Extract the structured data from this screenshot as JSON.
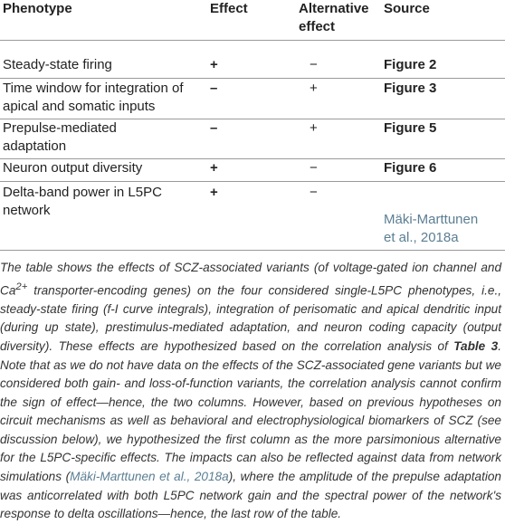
{
  "table": {
    "header": [
      "Phenotype",
      "Effect",
      [
        "Alternative",
        "effect"
      ],
      "Source"
    ],
    "rows": [
      {
        "phenotype": [
          "Steady-state firing"
        ],
        "effect": "+",
        "alternative": "−",
        "source": [
          "Figure 2"
        ]
      },
      {
        "phenotype": [
          "Time window for integration of",
          "apical and somatic inputs"
        ],
        "effect": "–",
        "alternative": "+",
        "source": [
          "Figure 3"
        ]
      },
      {
        "phenotype": [
          "Prepulse-mediated",
          "adaptation"
        ],
        "effect": "–",
        "alternative": "+",
        "source": [
          "Figure 5"
        ]
      },
      {
        "phenotype": [
          "Neuron output diversity"
        ],
        "effect": "+",
        "alternative": "−",
        "source": [
          "Figure 6"
        ]
      },
      {
        "phenotype": [
          "Delta-band power in L5PC",
          "network"
        ],
        "effect": "+",
        "alternative": "−",
        "source": [
          "Mäki-Marttunen",
          "et al., 2018a"
        ]
      }
    ]
  },
  "caption": [
    "The table shows the effects of SCZ-associated variants (of voltage-gated ion channel and Ca",
    "2+",
    " transporter-encoding genes) on the four considered single-L5PC phenotypes, i.e., steady-state firing (f-I curve integrals), integration of perisomatic and apical dendritic input (during up state), prestimulus-mediated adaptation, and neuron coding capacity (output diversity). These effects are hypothesized based on the correlation analysis of ",
    "Table 3",
    ". Note that as we do not have data on the effects of the SCZ-associated gene variants but we considered both gain- and loss-of-function variants, the correlation analysis cannot confirm the sign of effect—hence, the two columns. However, based on previous hypotheses on circuit mechanisms as well as behavioral and electrophysiological biomarkers of SCZ (see discussion below), we hypothesized the first column as the more parsimonious alternative for the L5PC-specific effects. The impacts can also be reflected against data from network simulations (",
    "Mäki-Marttunen et al., 2018a",
    "), where the amplitude of the prepulse adaptation was anticorrelated with both L5PC network gain and the spectral power of the network's response to delta oscillations—hence, the last row of the table."
  ]
}
